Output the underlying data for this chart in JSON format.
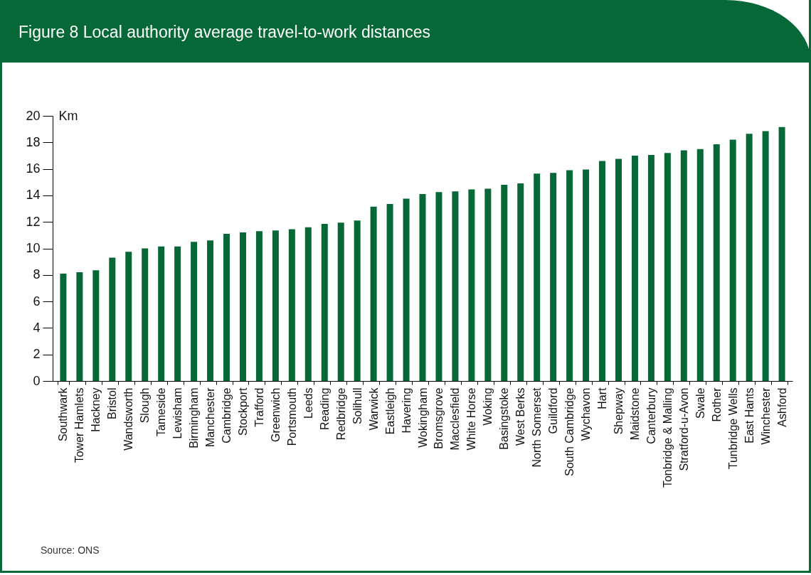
{
  "chart_data": {
    "type": "bar",
    "title": "Figure 8 Local authority average travel-to-work distances",
    "ylabel": "Km",
    "categories": [
      "Southwark",
      "Tower Hamlets",
      "Hackney",
      "Bristol",
      "Wandsworth",
      "Slough",
      "Tameside",
      "Lewisham",
      "Birmingham",
      "Manchester",
      "Cambridge",
      "Stockport",
      "Trafford",
      "Greenwich",
      "Portsmouth",
      "Leeds",
      "Reading",
      "Redbridge",
      "Solihull",
      "Warwick",
      "Eastleigh",
      "Havering",
      "Wokingham",
      "Bromsgrove",
      "Macclesfield",
      "White Horse",
      "Woking",
      "Basingstoke",
      "West Berks",
      "North Somerset",
      "Guildford",
      "South Cambridge",
      "Wychavon",
      "Hart",
      "Shepway",
      "Maidstone",
      "Canterbury",
      "Tonbridge & Malling",
      "Stratford-u-Avon",
      "Swale",
      "Rother",
      "Tunbridge Wells",
      "East Hants",
      "Winchester",
      "Ashford"
    ],
    "values": [
      8.1,
      8.2,
      8.35,
      9.3,
      9.75,
      10.0,
      10.15,
      10.15,
      10.5,
      10.6,
      11.1,
      11.2,
      11.3,
      11.35,
      11.45,
      11.6,
      11.85,
      11.95,
      12.1,
      13.15,
      13.35,
      13.75,
      14.1,
      14.25,
      14.3,
      14.45,
      14.5,
      14.8,
      14.9,
      15.65,
      15.7,
      15.9,
      15.95,
      16.6,
      16.75,
      17.0,
      17.05,
      17.2,
      17.4,
      17.5,
      17.85,
      18.2,
      18.65,
      18.85,
      19.15
    ],
    "color": "#056836",
    "ylim": [
      0,
      20
    ],
    "yticks": [
      0,
      2,
      4,
      6,
      8,
      10,
      12,
      14,
      16,
      18,
      20
    ],
    "grid": false,
    "annotations": [
      "Source: ONS"
    ]
  }
}
